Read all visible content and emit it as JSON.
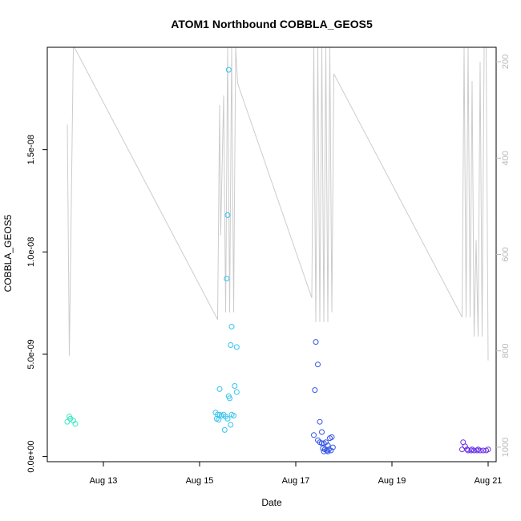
{
  "chart_data": {
    "type": "scatter",
    "title": "ATOM1 Northbound COBBLA_GEOS5",
    "xlabel": "Date",
    "ylabel": "COBBLA_GEOS5",
    "x_axis_type": "date",
    "xlim": [
      "2016-08-11 20:00",
      "2016-08-21 04:00"
    ],
    "ylim": [
      -2.5e-10,
      2e-08
    ],
    "x_ticks": [
      {
        "t": "2016-08-13",
        "label": "Aug 13"
      },
      {
        "t": "2016-08-15",
        "label": "Aug 15"
      },
      {
        "t": "2016-08-17",
        "label": "Aug 17"
      },
      {
        "t": "2016-08-19",
        "label": "Aug 19"
      },
      {
        "t": "2016-08-21",
        "label": "Aug 21"
      }
    ],
    "y_ticks": [
      {
        "v": 0,
        "label": "0.0e+00"
      },
      {
        "v": 5e-09,
        "label": "5.0e-09"
      },
      {
        "v": 1e-08,
        "label": "1.0e-08"
      },
      {
        "v": 1.5e-08,
        "label": "1.5e-08"
      }
    ],
    "right_axis": {
      "reversed": true,
      "lim": [
        1030,
        170
      ],
      "ticks": [
        {
          "v": 200,
          "label": "200"
        },
        {
          "v": 400,
          "label": "400"
        },
        {
          "v": 600,
          "label": "600"
        },
        {
          "v": 800,
          "label": "800"
        },
        {
          "v": 1000,
          "label": "1000"
        }
      ],
      "color": "#b8b8b8"
    },
    "pressure_line": {
      "color": "#cccccc",
      "points": [
        [
          "2016-08-12 06:00",
          330
        ],
        [
          "2016-08-12 07:00",
          810
        ],
        [
          "2016-08-12 09:00",
          170
        ],
        [
          "2016-08-12 09:30",
          170
        ],
        [
          "2016-08-15 09:00",
          735
        ],
        [
          "2016-08-15 10:00",
          290
        ],
        [
          "2016-08-15 10:30",
          560
        ],
        [
          "2016-08-15 12:00",
          270
        ],
        [
          "2016-08-15 13:00",
          720
        ],
        [
          "2016-08-15 14:00",
          170
        ],
        [
          "2016-08-15 15:00",
          720
        ],
        [
          "2016-08-15 16:00",
          170
        ],
        [
          "2016-08-15 17:00",
          720
        ],
        [
          "2016-08-15 18:00",
          170
        ],
        [
          "2016-08-15 19:00",
          245
        ],
        [
          "2016-08-17 08:00",
          690
        ],
        [
          "2016-08-17 09:00",
          170
        ],
        [
          "2016-08-17 10:00",
          740
        ],
        [
          "2016-08-17 11:00",
          170
        ],
        [
          "2016-08-17 12:00",
          740
        ],
        [
          "2016-08-17 13:00",
          170
        ],
        [
          "2016-08-17 14:00",
          740
        ],
        [
          "2016-08-17 15:00",
          170
        ],
        [
          "2016-08-17 16:00",
          740
        ],
        [
          "2016-08-17 17:00",
          170
        ],
        [
          "2016-08-17 18:00",
          720
        ],
        [
          "2016-08-17 19:00",
          225
        ],
        [
          "2016-08-20 11:00",
          730
        ],
        [
          "2016-08-20 12:00",
          170
        ],
        [
          "2016-08-20 13:00",
          730
        ],
        [
          "2016-08-20 14:00",
          170
        ],
        [
          "2016-08-20 15:00",
          730
        ],
        [
          "2016-08-20 16:00",
          240
        ],
        [
          "2016-08-20 17:00",
          770
        ],
        [
          "2016-08-20 18:00",
          570
        ],
        [
          "2016-08-20 19:00",
          770
        ],
        [
          "2016-08-20 20:00",
          200
        ],
        [
          "2016-08-20 21:00",
          770
        ],
        [
          "2016-08-20 22:00",
          170
        ],
        [
          "2016-08-20 23:00",
          170
        ],
        [
          "2016-08-21 00:00",
          820
        ]
      ]
    },
    "series": [
      {
        "color": "#33e8c0",
        "points": [
          [
            "2016-08-12 06:00",
            1.7e-09
          ],
          [
            "2016-08-12 07:00",
            1.95e-09
          ],
          [
            "2016-08-12 07:30",
            1.85e-09
          ],
          [
            "2016-08-12 09:00",
            1.75e-09
          ],
          [
            "2016-08-12 10:00",
            1.6e-09
          ]
        ]
      },
      {
        "color": "#33c4ee",
        "points": [
          [
            "2016-08-15 14:30",
            1.89e-08
          ],
          [
            "2016-08-15 14:00",
            1.18e-08
          ],
          [
            "2016-08-15 13:30",
            8.7e-09
          ],
          [
            "2016-08-15 16:00",
            6.35e-09
          ],
          [
            "2016-08-15 15:30",
            5.45e-09
          ],
          [
            "2016-08-15 18:30",
            5.35e-09
          ],
          [
            "2016-08-15 10:00",
            3.3e-09
          ],
          [
            "2016-08-15 17:30",
            3.45e-09
          ],
          [
            "2016-08-15 18:30",
            3.15e-09
          ],
          [
            "2016-08-15 14:30",
            2.95e-09
          ],
          [
            "2016-08-15 15:00",
            2.85e-09
          ],
          [
            "2016-08-15 08:00",
            2.15e-09
          ],
          [
            "2016-08-15 09:00",
            2.05e-09
          ],
          [
            "2016-08-15 10:00",
            2.05e-09
          ],
          [
            "2016-08-15 11:00",
            2e-09
          ],
          [
            "2016-08-15 12:00",
            2.05e-09
          ],
          [
            "2016-08-15 13:00",
            1.95e-09
          ],
          [
            "2016-08-15 14:00",
            1.85e-09
          ],
          [
            "2016-08-15 16:00",
            2.05e-09
          ],
          [
            "2016-08-15 17:00",
            2e-09
          ],
          [
            "2016-08-15 08:30",
            1.85e-09
          ],
          [
            "2016-08-15 09:30",
            1.8e-09
          ],
          [
            "2016-08-15 15:30",
            1.55e-09
          ],
          [
            "2016-08-15 12:30",
            1.3e-09
          ]
        ]
      },
      {
        "color": "#3355e8",
        "points": [
          [
            "2016-08-17 10:00",
            5.6e-09
          ],
          [
            "2016-08-17 11:00",
            4.5e-09
          ],
          [
            "2016-08-17 09:30",
            3.25e-09
          ],
          [
            "2016-08-17 12:00",
            1.7e-09
          ],
          [
            "2016-08-17 13:00",
            1.2e-09
          ],
          [
            "2016-08-17 09:00",
            1.05e-09
          ],
          [
            "2016-08-17 11:00",
            8e-10
          ],
          [
            "2016-08-17 12:00",
            7e-10
          ],
          [
            "2016-08-17 13:00",
            6.5e-10
          ],
          [
            "2016-08-17 14:00",
            6.5e-10
          ],
          [
            "2016-08-17 15:00",
            7e-10
          ],
          [
            "2016-08-17 16:00",
            5.5e-10
          ],
          [
            "2016-08-17 17:00",
            9e-10
          ],
          [
            "2016-08-17 18:00",
            9.5e-10
          ],
          [
            "2016-08-17 13:30",
            4e-10
          ],
          [
            "2016-08-17 14:30",
            3.5e-10
          ],
          [
            "2016-08-17 15:30",
            3e-10
          ],
          [
            "2016-08-17 16:30",
            3.5e-10
          ],
          [
            "2016-08-17 17:30",
            3e-10
          ],
          [
            "2016-08-17 18:30",
            4.5e-10
          ],
          [
            "2016-08-17 14:00",
            2.5e-10
          ],
          [
            "2016-08-17 16:00",
            2.5e-10
          ]
        ]
      },
      {
        "color": "#6a2ee8",
        "points": [
          [
            "2016-08-20 11:30",
            7e-10
          ],
          [
            "2016-08-20 12:30",
            5e-10
          ],
          [
            "2016-08-20 13:30",
            3.5e-10
          ],
          [
            "2016-08-20 11:00",
            3.5e-10
          ],
          [
            "2016-08-20 14:00",
            3e-10
          ],
          [
            "2016-08-20 15:30",
            3e-10
          ],
          [
            "2016-08-20 17:00",
            3e-10
          ],
          [
            "2016-08-20 18:30",
            3e-10
          ],
          [
            "2016-08-20 20:00",
            3e-10
          ],
          [
            "2016-08-20 21:30",
            3e-10
          ],
          [
            "2016-08-20 23:00",
            3e-10
          ],
          [
            "2016-08-21 00:00",
            3.5e-10
          ],
          [
            "2016-08-20 19:00",
            3.5e-10
          ],
          [
            "2016-08-20 16:00",
            3.5e-10
          ]
        ]
      }
    ]
  }
}
